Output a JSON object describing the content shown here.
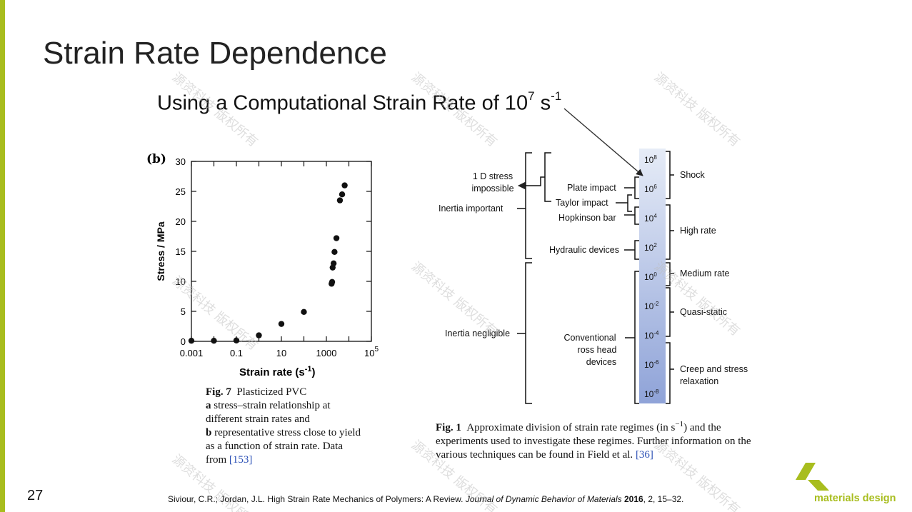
{
  "colors": {
    "accent": "#a8bd1e",
    "blue_light": "#dde5f4",
    "blue_dark": "#8fa3d8"
  },
  "slide": {
    "title": "Strain Rate Dependence",
    "subtitle_text": "Using a Computational Strain Rate of 10",
    "subtitle_exp": "7",
    "subtitle_unit": " s",
    "subtitle_unit_exp": "-1",
    "page_number": "27"
  },
  "figure7": {
    "panel_label": "(b)",
    "caption": {
      "label": "Fig. 7",
      "title": "Plasticized PVC",
      "line_a_letter": "a",
      "line_a": "stress–strain relationship at different strain rates and",
      "line_b_letter": "b",
      "line_b": "representative stress close to yield as a function of strain rate. Data from",
      "ref": "[153]"
    }
  },
  "chart_data": {
    "type": "scatter",
    "title": "",
    "xlabel": "Strain rate (s",
    "xlabel_exp": "-1",
    "xlabel_close": ")",
    "ylabel": "Stress / MPa",
    "x_scale": "log",
    "xlim": [
      0.001,
      100000
    ],
    "ylim": [
      0,
      30
    ],
    "x_ticks": [
      {
        "value": 0.001,
        "label": "0.001"
      },
      {
        "value": 0.1,
        "label": "0.1"
      },
      {
        "value": 10,
        "label": "10"
      },
      {
        "value": 1000,
        "label": "1000"
      },
      {
        "value": 100000,
        "label": "10",
        "exp": "5"
      }
    ],
    "y_ticks": [
      0,
      5,
      10,
      15,
      20,
      25,
      30
    ],
    "points": [
      {
        "x": 0.001,
        "y": 0.1
      },
      {
        "x": 0.01,
        "y": 0.1
      },
      {
        "x": 0.1,
        "y": 0.15
      },
      {
        "x": 1,
        "y": 1.0
      },
      {
        "x": 10,
        "y": 2.9
      },
      {
        "x": 100,
        "y": 4.9
      },
      {
        "x": 1700,
        "y": 9.6
      },
      {
        "x": 1800,
        "y": 9.9
      },
      {
        "x": 1900,
        "y": 12.3
      },
      {
        "x": 2100,
        "y": 13.0
      },
      {
        "x": 2300,
        "y": 14.9
      },
      {
        "x": 2800,
        "y": 17.2
      },
      {
        "x": 4000,
        "y": 23.5
      },
      {
        "x": 5000,
        "y": 24.5
      },
      {
        "x": 6500,
        "y": 26.0
      }
    ]
  },
  "figure1": {
    "scale": [
      {
        "base": "10",
        "exp": "8"
      },
      {
        "base": "10",
        "exp": "6"
      },
      {
        "base": "10",
        "exp": "4"
      },
      {
        "base": "10",
        "exp": "2"
      },
      {
        "base": "10",
        "exp": "0"
      },
      {
        "base": "10",
        "exp": "-2"
      },
      {
        "base": "10",
        "exp": "-4"
      },
      {
        "base": "10",
        "exp": "-6"
      },
      {
        "base": "10",
        "exp": "-8"
      }
    ],
    "regimes": [
      "Shock",
      "High rate",
      "Medium rate",
      "Quasi-static",
      "Creep and stress",
      "relaxation"
    ],
    "techniques": [
      "Plate impact",
      "Taylor impact",
      "Hopkinson bar",
      "Hydraulic devices",
      "Conventional",
      "ross head",
      "devices"
    ],
    "inertia": [
      "1 D stress",
      "impossible",
      "Inertia important",
      "Inertia negligible"
    ],
    "caption": {
      "label": "Fig. 1",
      "text_1": "Approximate division of strain rate regimes (in s",
      "text_exp": "−1",
      "text_2": ") and the experiments used to investigate these regimes. Further information on the various techniques can be found in Field et al.",
      "ref": "[36]"
    }
  },
  "reference": {
    "authors": "Siviour, C.R.; Jordan, J.L. High Strain Rate Mechanics of Polymers: A Review.",
    "journal": "Journal of Dynamic Behavior of Materials",
    "year": "2016",
    "rest": ", 2, 15–32."
  },
  "logo": {
    "text": "materials design"
  },
  "watermark": {
    "text": "源资科技 版权所有"
  }
}
